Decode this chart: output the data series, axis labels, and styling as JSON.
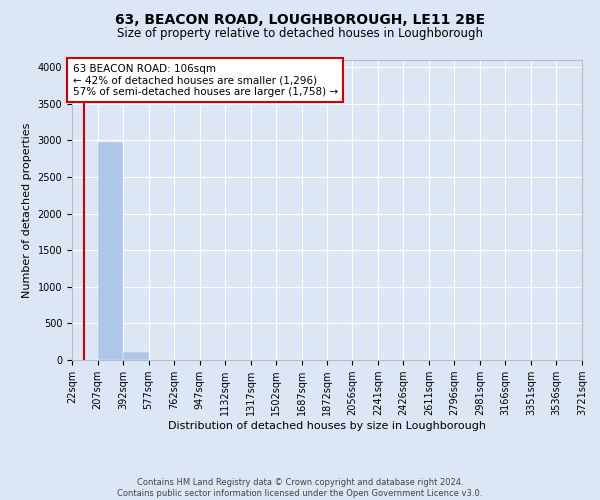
{
  "title": "63, BEACON ROAD, LOUGHBOROUGH, LE11 2BE",
  "subtitle": "Size of property relative to detached houses in Loughborough",
  "xlabel": "Distribution of detached houses by size in Loughborough",
  "ylabel": "Number of detached properties",
  "footer_line1": "Contains HM Land Registry data © Crown copyright and database right 2024.",
  "footer_line2": "Contains public sector information licensed under the Open Government Licence v3.0.",
  "bin_labels": [
    "22sqm",
    "207sqm",
    "392sqm",
    "577sqm",
    "762sqm",
    "947sqm",
    "1132sqm",
    "1317sqm",
    "1502sqm",
    "1687sqm",
    "1872sqm",
    "2056sqm",
    "2241sqm",
    "2426sqm",
    "2611sqm",
    "2796sqm",
    "2981sqm",
    "3166sqm",
    "3351sqm",
    "3536sqm",
    "3721sqm"
  ],
  "bar_values": [
    0,
    2980,
    110,
    5,
    2,
    1,
    1,
    0,
    0,
    0,
    0,
    0,
    0,
    0,
    0,
    0,
    0,
    0,
    0,
    0
  ],
  "bar_color": "#aec6e8",
  "background_color": "#dce6f5",
  "grid_color": "#ffffff",
  "property_line_x": 106,
  "property_line_color": "#cc0000",
  "annotation_text": "63 BEACON ROAD: 106sqm\n← 42% of detached houses are smaller (1,296)\n57% of semi-detached houses are larger (1,758) →",
  "annotation_box_color": "#cc0000",
  "ylim": [
    0,
    4100
  ],
  "yticks": [
    0,
    500,
    1000,
    1500,
    2000,
    2500,
    3000,
    3500,
    4000
  ],
  "bin_edges": [
    22,
    207,
    392,
    577,
    762,
    947,
    1132,
    1317,
    1502,
    1687,
    1872,
    2056,
    2241,
    2426,
    2611,
    2796,
    2981,
    3166,
    3351,
    3536,
    3721
  ],
  "title_fontsize": 10,
  "subtitle_fontsize": 8.5,
  "label_fontsize": 8,
  "tick_fontsize": 7,
  "footer_fontsize": 6
}
